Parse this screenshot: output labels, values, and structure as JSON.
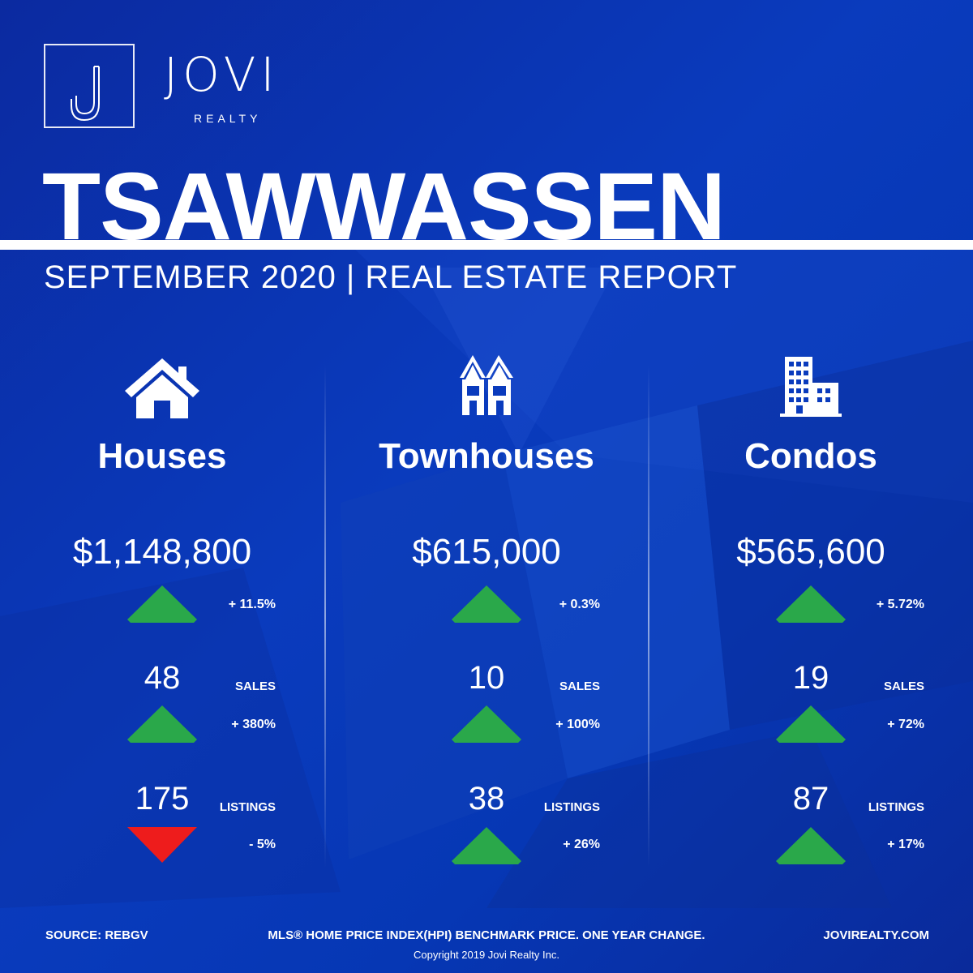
{
  "brand": {
    "name": "JOVI",
    "sub": "REALTY"
  },
  "title": "TSAWWASSEN",
  "subtitle": "SEPTEMBER 2020 | REAL ESTATE REPORT",
  "colors": {
    "up": "#2aa84a",
    "down": "#ee1c1c",
    "bg": "#0a3bbd"
  },
  "columns": [
    {
      "name": "Houses",
      "icon": "house-icon",
      "price": "$1,148,800",
      "price_change": {
        "text": "+ 11.5%",
        "direction": "up"
      },
      "sales": {
        "value": "48",
        "label": "SALES",
        "change": "+ 380%",
        "direction": "up"
      },
      "listings": {
        "value": "175",
        "label": "LISTINGS",
        "change": "- 5%",
        "direction": "down"
      }
    },
    {
      "name": "Townhouses",
      "icon": "townhouse-icon",
      "price": "$615,000",
      "price_change": {
        "text": "+ 0.3%",
        "direction": "up"
      },
      "sales": {
        "value": "10",
        "label": "SALES",
        "change": "+ 100%",
        "direction": "up"
      },
      "listings": {
        "value": "38",
        "label": "LISTINGS",
        "change": "+ 26%",
        "direction": "up"
      }
    },
    {
      "name": "Condos",
      "icon": "condo-building-icon",
      "price": "$565,600",
      "price_change": {
        "text": "+ 5.72%",
        "direction": "up"
      },
      "sales": {
        "value": "19",
        "label": "SALES",
        "change": "+ 72%",
        "direction": "up"
      },
      "listings": {
        "value": "87",
        "label": "LISTINGS",
        "change": "+ 17%",
        "direction": "up"
      }
    }
  ],
  "footer": {
    "source": "SOURCE:  REBGV",
    "note": "MLS® HOME PRICE INDEX(HPI) BENCHMARK PRICE. ONE YEAR CHANGE.",
    "website": "JOVIREALTY.COM",
    "copyright": "Copyright 2019 Jovi Realty Inc."
  }
}
